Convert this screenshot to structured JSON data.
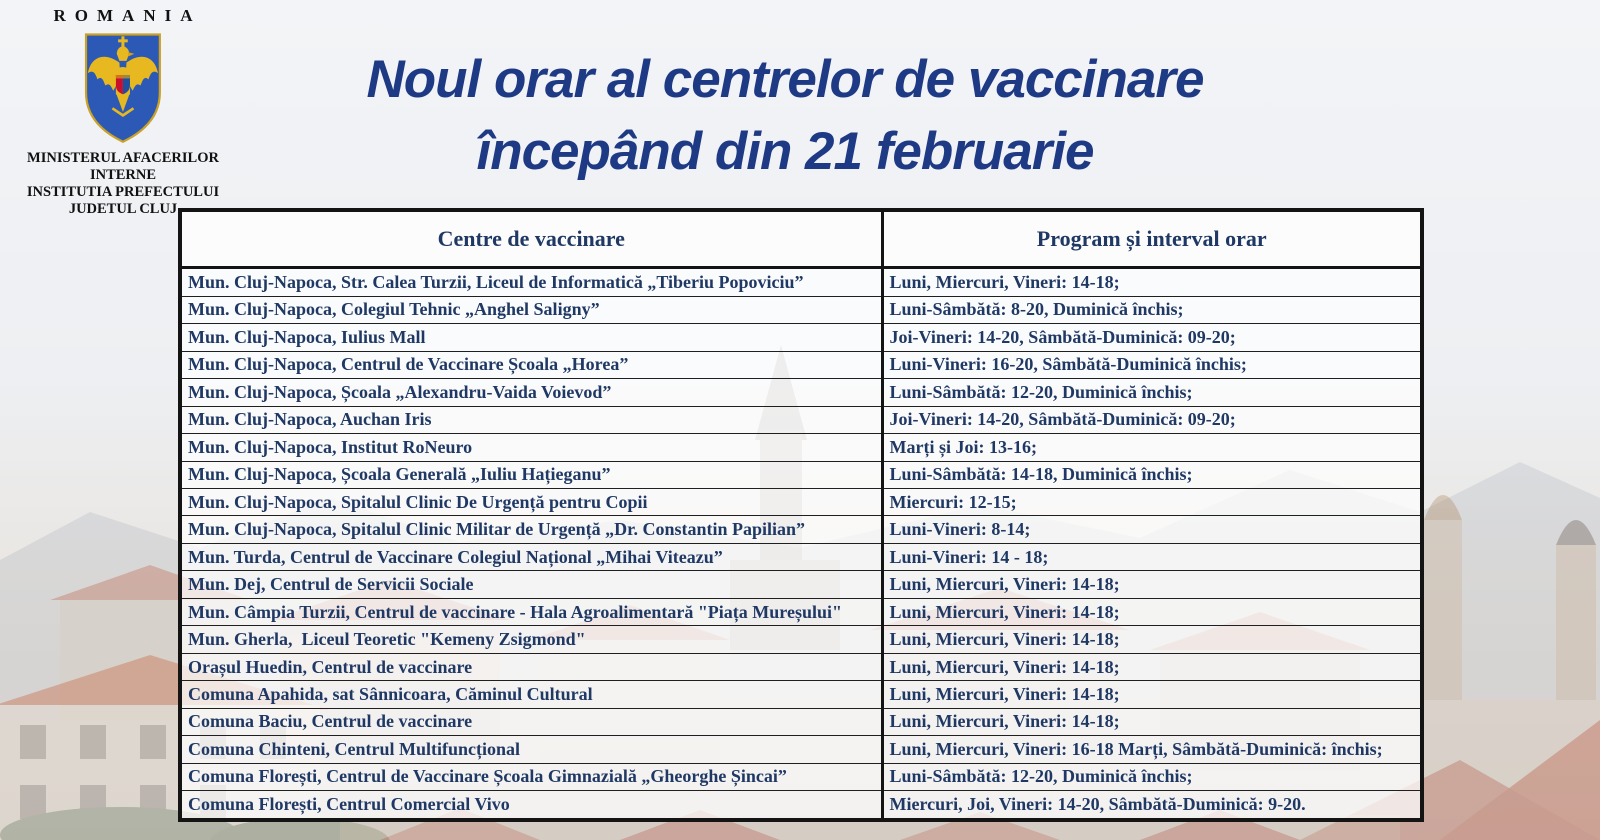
{
  "colors": {
    "title_blue": "#1e3a85",
    "table_text_blue": "#1f3864",
    "border_black": "#141414",
    "emblem_shield_blue": "#2b59b5",
    "emblem_gold": "#e8b820",
    "background_tint": "#eef0f3"
  },
  "logo": {
    "country": "ROMANIA",
    "emblem_icon": "romania-coat-of-arms",
    "ministry_lines": [
      "MINISTERUL AFACERILOR INTERNE",
      "INSTITUTIA PREFECTULUI",
      "JUDETUL CLUJ"
    ]
  },
  "title": {
    "line1": "Noul orar al centrelor de vaccinare",
    "line2": "începând din 21 februarie"
  },
  "table": {
    "headers": [
      "Centre de vaccinare",
      "Program și interval orar"
    ],
    "rows": [
      [
        "Mun. Cluj-Napoca, Str. Calea Turzii, Liceul de Informatică „Tiberiu Popoviciu”",
        "Luni, Miercuri, Vineri: 14-18;"
      ],
      [
        "Mun. Cluj-Napoca, Colegiul Tehnic „Anghel Saligny”",
        "Luni-Sâmbătă: 8-20, Duminică închis;"
      ],
      [
        "Mun. Cluj-Napoca, Iulius Mall",
        "Joi-Vineri: 14-20, Sâmbătă-Duminică: 09-20;"
      ],
      [
        "Mun. Cluj-Napoca, Centrul de Vaccinare Școala „Horea”",
        "Luni-Vineri: 16-20, Sâmbătă-Duminică închis;"
      ],
      [
        "Mun. Cluj-Napoca, Școala „Alexandru-Vaida Voievod”",
        "Luni-Sâmbătă: 12-20, Duminică închis;"
      ],
      [
        "Mun. Cluj-Napoca, Auchan Iris",
        "Joi-Vineri: 14-20, Sâmbătă-Duminică: 09-20;"
      ],
      [
        "Mun. Cluj-Napoca, Institut RoNeuro",
        "Marți și Joi: 13-16;"
      ],
      [
        "Mun. Cluj-Napoca, Școala Generală „Iuliu Hațieganu”",
        "Luni-Sâmbătă: 14-18, Duminică închis;"
      ],
      [
        "Mun. Cluj-Napoca, Spitalul Clinic De Urgență pentru Copii",
        "Miercuri: 12-15;"
      ],
      [
        "Mun. Cluj-Napoca, Spitalul Clinic Militar de Urgență „Dr. Constantin Papilian”",
        "Luni-Vineri: 8-14;"
      ],
      [
        "Mun. Turda, Centrul de Vaccinare Colegiul Național „Mihai Viteazu”",
        "Luni-Vineri: 14 - 18;"
      ],
      [
        "Mun. Dej, Centrul de Servicii Sociale",
        "Luni, Miercuri, Vineri: 14-18;"
      ],
      [
        "Mun. Câmpia Turzii, Centrul de vaccinare - Hala Agroalimentară \"Piața Mureșului\"",
        "Luni, Miercuri, Vineri: 14-18;"
      ],
      [
        "Mun. Gherla,  Liceul Teoretic \"Kemeny Zsigmond\"",
        "Luni, Miercuri, Vineri: 14-18;"
      ],
      [
        "Orașul Huedin, Centrul de vaccinare",
        "Luni, Miercuri, Vineri: 14-18;"
      ],
      [
        "Comuna Apahida, sat Sânnicoara, Căminul Cultural",
        "Luni, Miercuri, Vineri: 14-18;"
      ],
      [
        "Comuna Baciu, Centrul de vaccinare",
        "Luni, Miercuri, Vineri: 14-18;"
      ],
      [
        "Comuna Chinteni, Centrul Multifuncțional",
        "Luni, Miercuri, Vineri: 16-18 Marți, Sâmbătă-Duminică: închis;"
      ],
      [
        "Comuna Florești, Centrul de Vaccinare Școala Gimnazială „Gheorghe Șincai”",
        "Luni-Sâmbătă: 12-20, Duminică închis;"
      ],
      [
        "Comuna Florești, Centrul Comercial Vivo",
        "Miercuri, Joi, Vineri: 14-20, Sâmbătă-Duminică: 9-20."
      ]
    ]
  }
}
